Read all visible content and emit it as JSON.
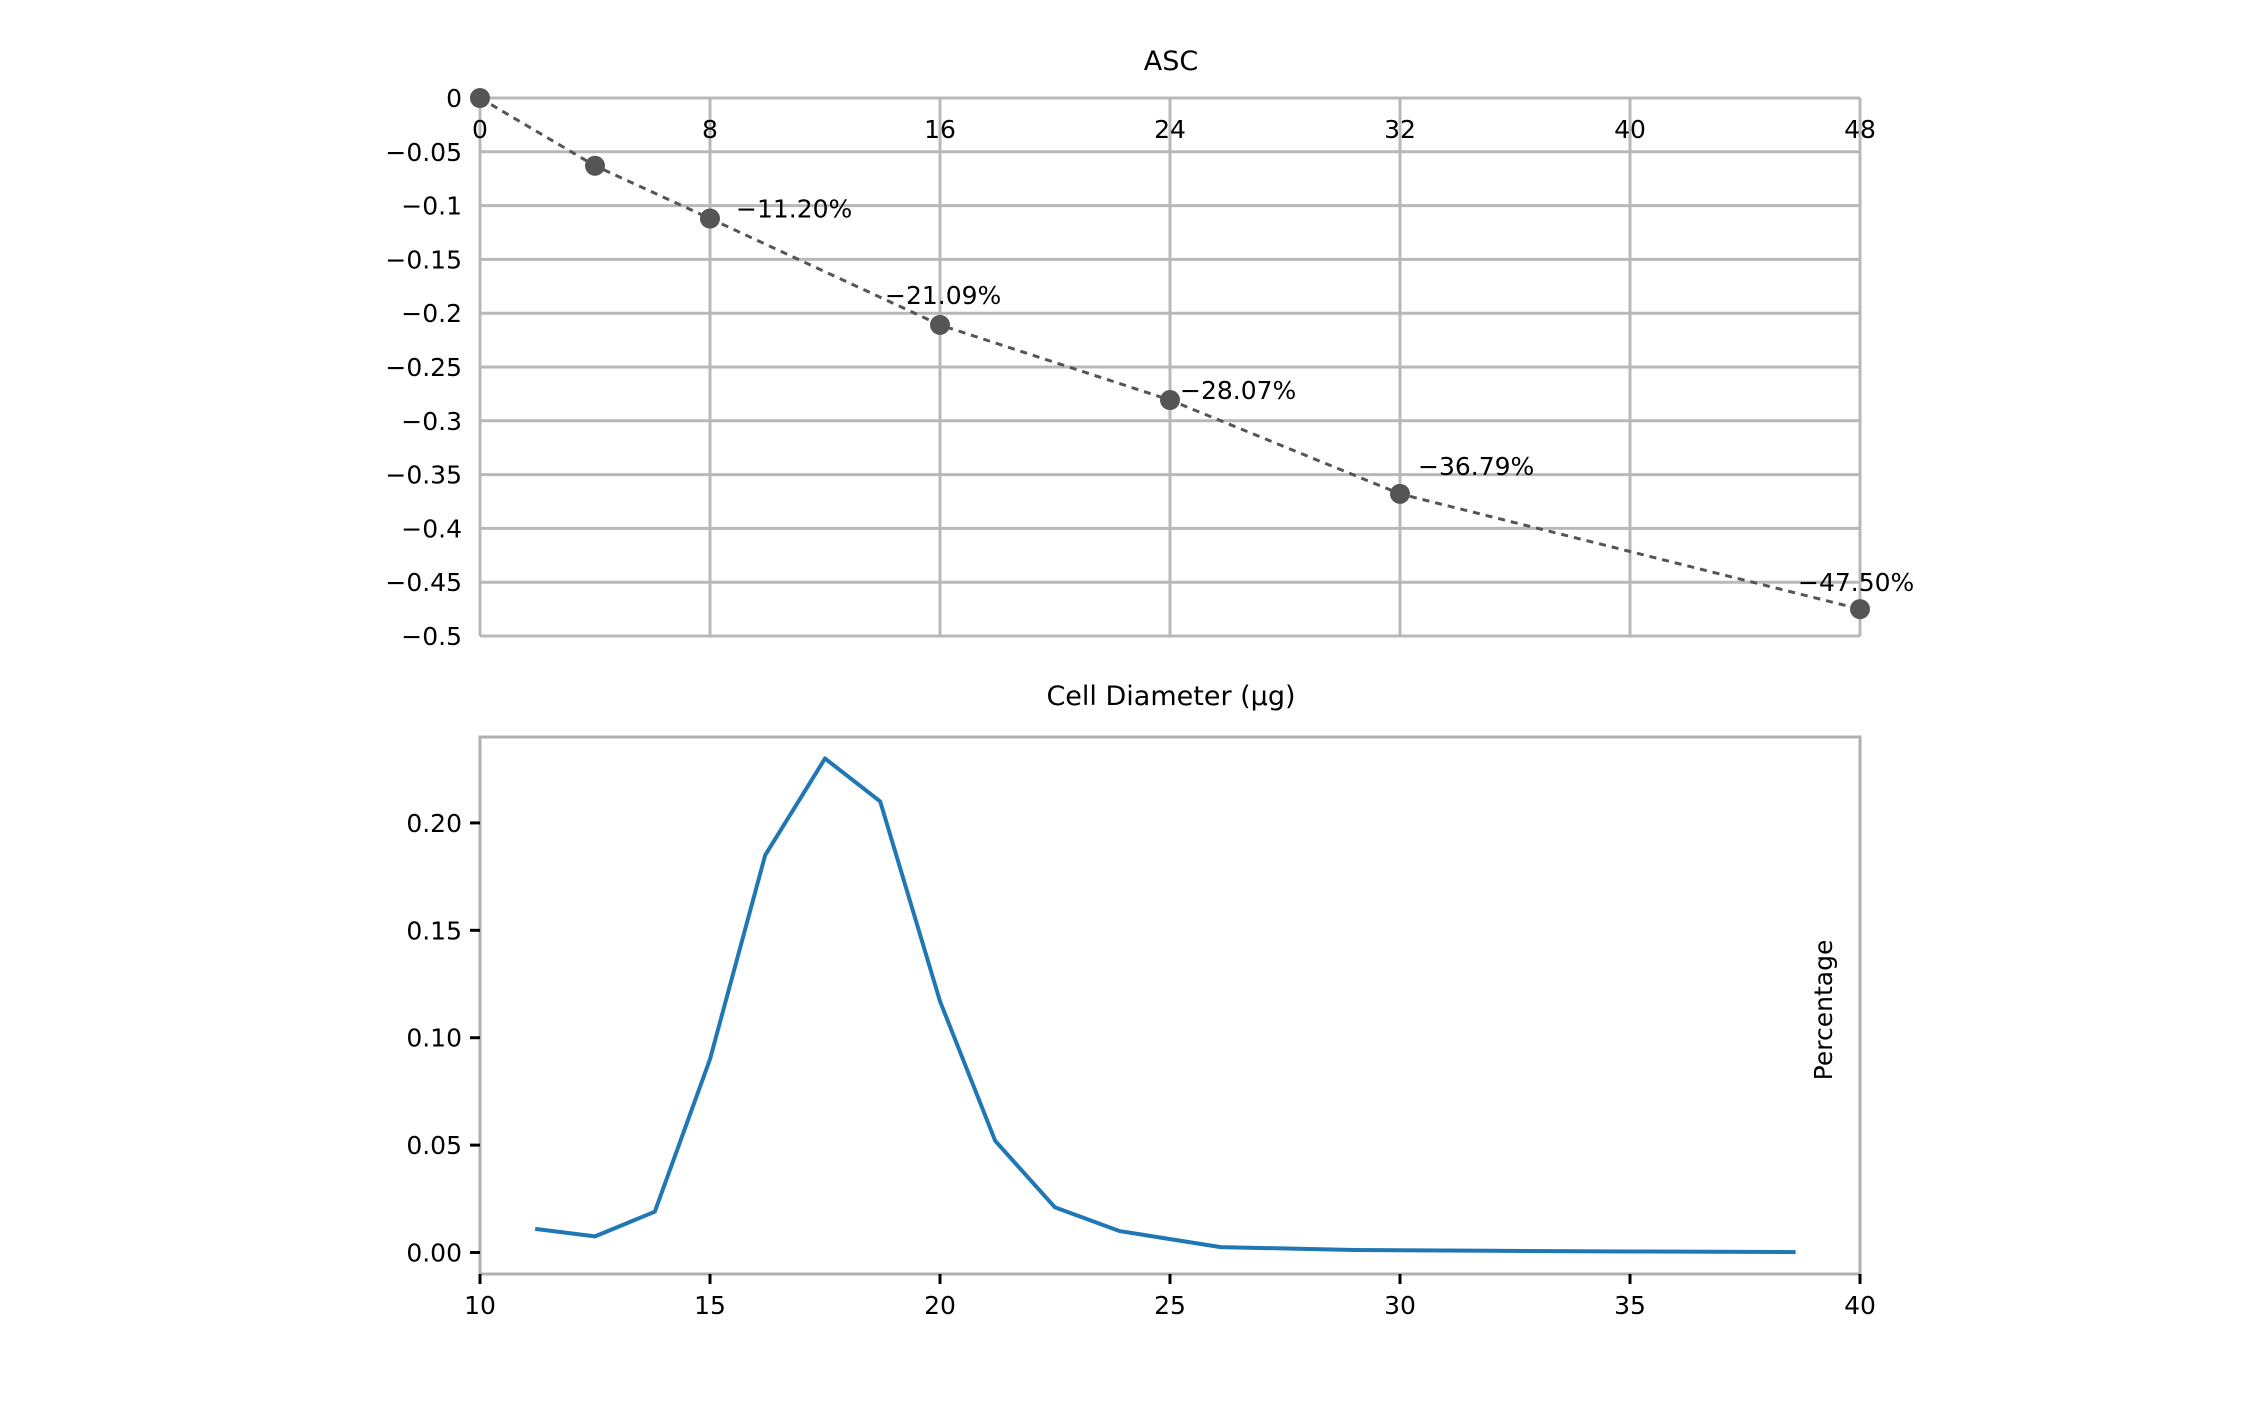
{
  "chart_data": [
    {
      "type": "line",
      "title": "ASC",
      "xlabel": "",
      "ylabel": "",
      "xlim": [
        0,
        48
      ],
      "ylim": [
        -0.5,
        0
      ],
      "xticks": [
        0,
        8,
        16,
        24,
        32,
        40,
        48
      ],
      "xtick_labels": [
        "0",
        "8",
        "16",
        "24",
        "32",
        "40",
        "48"
      ],
      "yticks": [
        0,
        -0.05,
        -0.1,
        -0.15,
        -0.2,
        -0.25,
        -0.3,
        -0.35,
        -0.4,
        -0.45,
        -0.5
      ],
      "ytick_labels": [
        "0",
        "−0.05",
        "−0.1",
        "−0.15",
        "−0.2",
        "−0.25",
        "−0.3",
        "−0.35",
        "−0.4",
        "−0.45",
        "−0.5"
      ],
      "grid": true,
      "x_axis_position": "top",
      "series": [
        {
          "name": "ASC",
          "style": "dotted",
          "color": "#555555",
          "x": [
            0,
            4,
            8,
            16,
            24,
            32,
            48
          ],
          "y": [
            0,
            -0.063,
            -0.112,
            -0.2109,
            -0.2807,
            -0.3679,
            -0.475
          ]
        }
      ],
      "annotations": [
        {
          "x": 8,
          "y": -0.112,
          "text": "−11.20%"
        },
        {
          "x": 16,
          "y": -0.2109,
          "text": "−21.09%"
        },
        {
          "x": 24,
          "y": -0.2807,
          "text": "−28.07%"
        },
        {
          "x": 32,
          "y": -0.3679,
          "text": "−36.79%"
        },
        {
          "x": 48,
          "y": -0.475,
          "text": "−47.50%"
        }
      ]
    },
    {
      "type": "line",
      "title": "Cell Diameter (μg)",
      "xlabel": "",
      "ylabel": "Percentage",
      "xlim": [
        10,
        40
      ],
      "ylim": [
        -0.01,
        0.24
      ],
      "xticks": [
        10,
        15,
        20,
        25,
        30,
        35,
        40
      ],
      "xtick_labels": [
        "10",
        "15",
        "20",
        "25",
        "30",
        "35",
        "40"
      ],
      "yticks": [
        0,
        0.05,
        0.1,
        0.15,
        0.2
      ],
      "ytick_labels": [
        "0.00",
        "0.05",
        "0.10",
        "0.15",
        "0.20"
      ],
      "grid": false,
      "series": [
        {
          "name": "Percentage",
          "style": "solid",
          "color": "#1f77b4",
          "x": [
            11.2,
            12.5,
            13.8,
            15.0,
            16.2,
            17.5,
            18.7,
            20.0,
            21.2,
            22.5,
            23.9,
            26.1,
            29.0,
            32.0,
            35.0,
            38.6
          ],
          "y": [
            0.011,
            0.0075,
            0.019,
            0.09,
            0.185,
            0.23,
            0.21,
            0.117,
            0.052,
            0.021,
            0.01,
            0.0025,
            0.0012,
            0.0008,
            0.0005,
            0.0002
          ]
        }
      ]
    }
  ]
}
